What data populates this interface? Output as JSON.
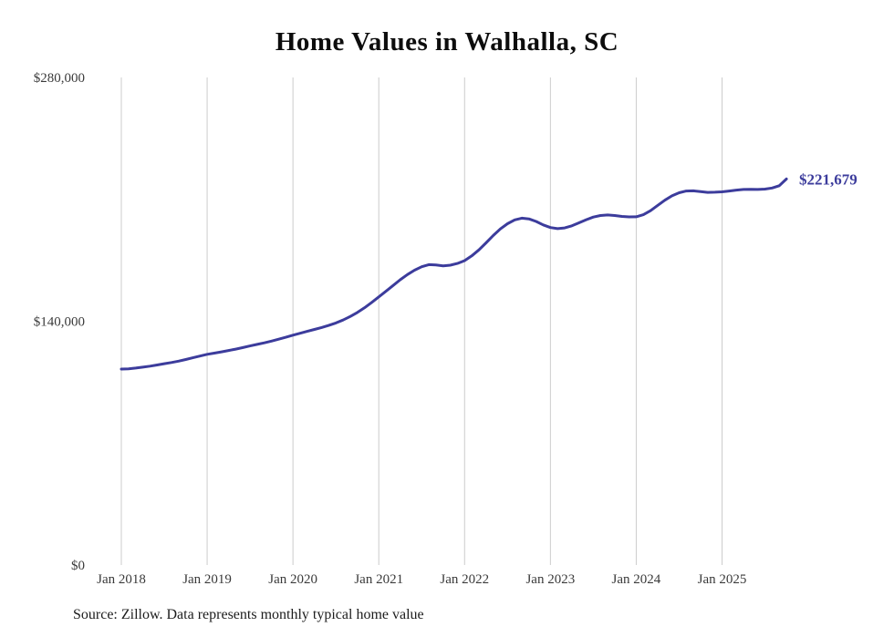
{
  "page": {
    "background": "#ffffff"
  },
  "title": "Home Values in Walhalla, SC",
  "source_note": "Source: Zillow. Data represents monthly typical home value",
  "chart_data": {
    "type": "line",
    "title": "Home Values in Walhalla, SC",
    "xlabel": "",
    "ylabel": "",
    "ylim": [
      0,
      280000
    ],
    "grid": "vertical-only",
    "legend": "none",
    "line_color": "#3c3c9c",
    "gridline_color": "#cccccc",
    "tick_text_color": "#3a3a3a",
    "end_label": "$221,679",
    "end_value": 221679,
    "x_tick_labels": [
      "Jan 2018",
      "Jan 2019",
      "Jan 2020",
      "Jan 2021",
      "Jan 2022",
      "Jan 2023",
      "Jan 2024",
      "Jan 2025"
    ],
    "y_ticks": [
      {
        "value": 0,
        "label": "$0"
      },
      {
        "value": 140000,
        "label": "$140,000"
      },
      {
        "value": 280000,
        "label": "$280,000"
      }
    ],
    "series": [
      {
        "name": "Typical home value",
        "start_month": "2018-01",
        "end_month": "2025-10",
        "months": [
          "2018-01",
          "2018-02",
          "2018-03",
          "2018-04",
          "2018-05",
          "2018-06",
          "2018-07",
          "2018-08",
          "2018-09",
          "2018-10",
          "2018-11",
          "2018-12",
          "2019-01",
          "2019-02",
          "2019-03",
          "2019-04",
          "2019-05",
          "2019-06",
          "2019-07",
          "2019-08",
          "2019-09",
          "2019-10",
          "2019-11",
          "2019-12",
          "2020-01",
          "2020-02",
          "2020-03",
          "2020-04",
          "2020-05",
          "2020-06",
          "2020-07",
          "2020-08",
          "2020-09",
          "2020-10",
          "2020-11",
          "2020-12",
          "2021-01",
          "2021-02",
          "2021-03",
          "2021-04",
          "2021-05",
          "2021-06",
          "2021-07",
          "2021-08",
          "2021-09",
          "2021-10",
          "2021-11",
          "2021-12",
          "2022-01",
          "2022-02",
          "2022-03",
          "2022-04",
          "2022-05",
          "2022-06",
          "2022-07",
          "2022-08",
          "2022-09",
          "2022-10",
          "2022-11",
          "2022-12",
          "2023-01",
          "2023-02",
          "2023-03",
          "2023-04",
          "2023-05",
          "2023-06",
          "2023-07",
          "2023-08",
          "2023-09",
          "2023-10",
          "2023-11",
          "2023-12",
          "2024-01",
          "2024-02",
          "2024-03",
          "2024-04",
          "2024-05",
          "2024-06",
          "2024-07",
          "2024-08",
          "2024-09",
          "2024-10",
          "2024-11",
          "2024-12",
          "2025-01",
          "2025-02",
          "2025-03",
          "2025-04",
          "2025-05",
          "2025-06",
          "2025-07",
          "2025-08",
          "2025-09",
          "2025-10"
        ],
        "values": [
          112500,
          112700,
          113100,
          113600,
          114200,
          114900,
          115600,
          116300,
          117100,
          118000,
          119000,
          120000,
          121000,
          121700,
          122400,
          123200,
          124000,
          124900,
          125800,
          126700,
          127600,
          128600,
          129700,
          130800,
          132000,
          133100,
          134200,
          135300,
          136400,
          137600,
          139000,
          140700,
          142700,
          145000,
          147700,
          150800,
          154000,
          157200,
          160500,
          163800,
          166800,
          169300,
          171300,
          172500,
          172300,
          171800,
          172200,
          173200,
          174800,
          177500,
          181000,
          185000,
          189200,
          193000,
          196000,
          198200,
          199200,
          198800,
          197300,
          195300,
          193800,
          193200,
          193600,
          194800,
          196500,
          198300,
          199800,
          200700,
          201000,
          200700,
          200200,
          199900,
          200000,
          201200,
          203500,
          206500,
          209500,
          212000,
          213800,
          214800,
          214900,
          214400,
          214000,
          214100,
          214300,
          214800,
          215300,
          215700,
          215800,
          215700,
          215900,
          216500,
          217800,
          221679
        ]
      }
    ]
  }
}
